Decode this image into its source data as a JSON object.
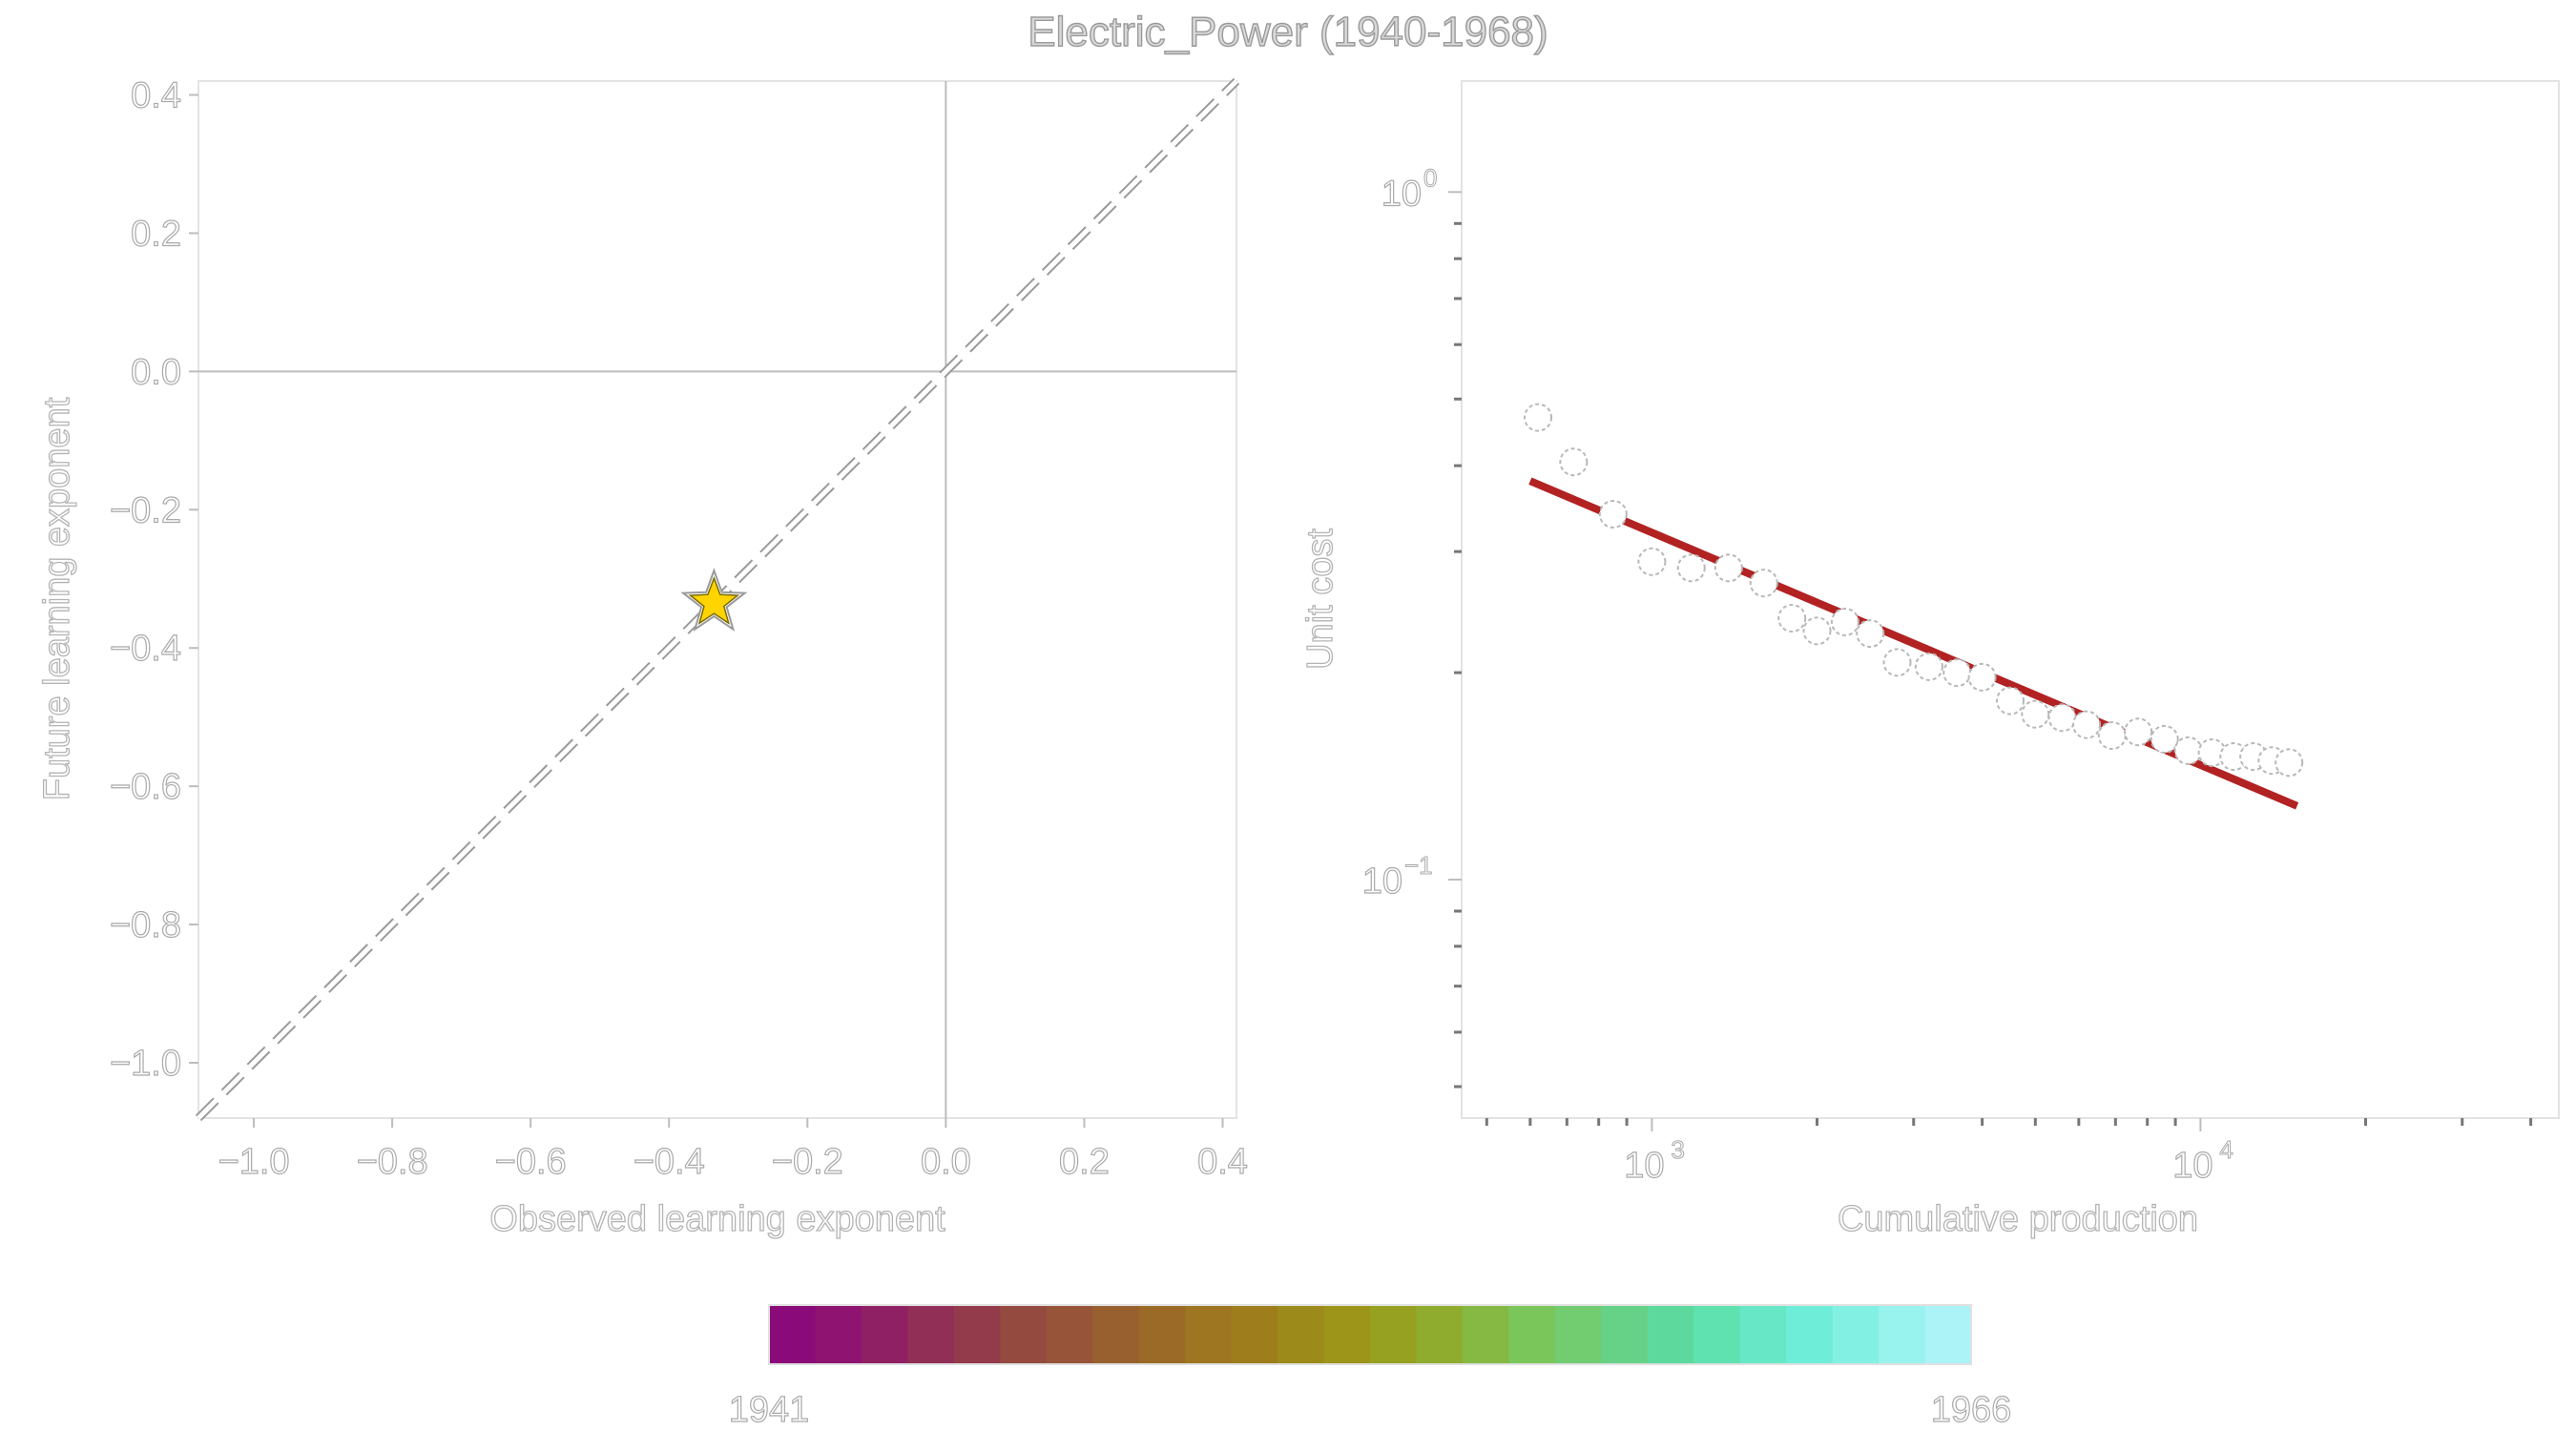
{
  "title": "Electric_Power (1940-1968)",
  "chart_data": [
    {
      "type": "scatter",
      "name": "learning-exponent",
      "xlabel": "Observed learning exponent",
      "ylabel": "Future learning exponent",
      "xlim": [
        -1.08,
        0.42
      ],
      "ylim": [
        -1.08,
        0.42
      ],
      "xticks": [
        -1.0,
        -0.8,
        -0.6,
        -0.4,
        -0.2,
        0.0,
        0.2,
        0.4
      ],
      "yticks": [
        -1.0,
        -0.8,
        -0.6,
        -0.4,
        -0.2,
        0.0,
        0.2,
        0.4
      ],
      "xtick_labels": [
        "−1.0",
        "−0.8",
        "−0.6",
        "−0.4",
        "−0.2",
        "0.0",
        "0.2",
        "0.4"
      ],
      "ytick_labels": [
        "−1.0",
        "−0.8",
        "−0.6",
        "−0.4",
        "−0.2",
        "0.0",
        "0.2",
        "0.4"
      ],
      "reference_lines": {
        "x": 0,
        "y": 0,
        "diagonal": "dashed y = x"
      },
      "points": [
        {
          "x": -0.335,
          "y": -0.335,
          "marker": "star",
          "color": "#ffd400"
        }
      ],
      "grid": false
    },
    {
      "type": "scatter",
      "name": "experience-curve",
      "xlabel": "Cumulative production",
      "ylabel": "Unit cost",
      "x_scale": "log",
      "y_scale": "log",
      "xlim": [
        450,
        45000
      ],
      "ylim": [
        0.045,
        1.45
      ],
      "xticks": [
        1000,
        10000
      ],
      "yticks": [
        0.1,
        1
      ],
      "xtick_labels": [
        {
          "base": "10",
          "exp": "3"
        },
        {
          "base": "10",
          "exp": "4"
        }
      ],
      "ytick_labels": [
        {
          "base": "10",
          "exp": "−1"
        },
        {
          "base": "10",
          "exp": "0"
        }
      ],
      "x": [
        620,
        720,
        850,
        1000,
        1180,
        1380,
        1600,
        1800,
        2000,
        2250,
        2500,
        2800,
        3200,
        3600,
        4000,
        4500,
        5000,
        5600,
        6200,
        6900,
        7700,
        8600,
        9500,
        10500,
        11500,
        12500,
        13500,
        14500
      ],
      "y": [
        0.47,
        0.405,
        0.34,
        0.29,
        0.284,
        0.284,
        0.27,
        0.24,
        0.23,
        0.237,
        0.228,
        0.207,
        0.204,
        0.2,
        0.197,
        0.182,
        0.174,
        0.172,
        0.168,
        0.162,
        0.164,
        0.16,
        0.154,
        0.153,
        0.151,
        0.151,
        0.149,
        0.148
      ],
      "marker": "open-circle",
      "fit_line": {
        "x": [
          600,
          15000
        ],
        "y": [
          0.38,
          0.128
        ],
        "color": "#b22222"
      },
      "grid": false
    }
  ],
  "colorbar": {
    "min_label": "1941",
    "max_label": "1966",
    "colors": [
      "#8b0a79",
      "#8f1370",
      "#8f2063",
      "#912f57",
      "#933b4b",
      "#954a40",
      "#975438",
      "#99602f",
      "#9b6a27",
      "#9e7521",
      "#9d7d1c",
      "#9c8a1a",
      "#9c9519",
      "#97a121",
      "#8fac2f",
      "#85b943",
      "#7bc65a",
      "#72cc70",
      "#66d287",
      "#5ed99e",
      "#5fe1b0",
      "#68e7c6",
      "#6eedd8",
      "#82f1e4",
      "#98f3ef",
      "#abf3f7"
    ]
  }
}
